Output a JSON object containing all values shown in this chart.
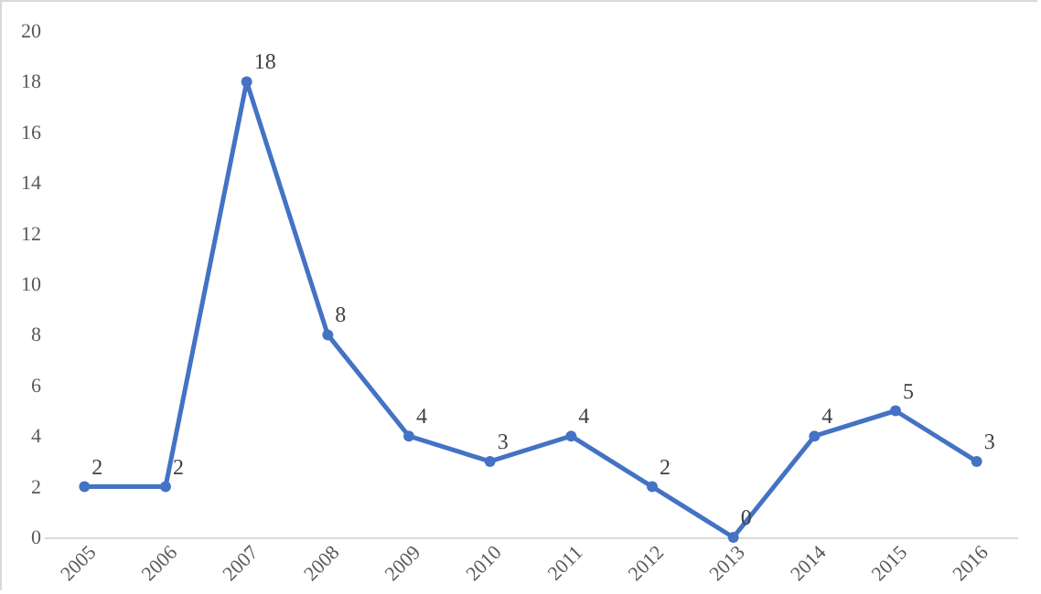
{
  "chart_data": {
    "type": "line",
    "categories": [
      "2005",
      "2006",
      "2007",
      "2008",
      "2009",
      "2010",
      "2011",
      "2012",
      "2013",
      "2014",
      "2015",
      "2016"
    ],
    "series": [
      {
        "color": "#4472c4",
        "values": [
          2,
          2,
          18,
          8,
          4,
          3,
          4,
          2,
          0,
          4,
          5,
          3
        ]
      }
    ],
    "ylim": [
      0,
      20
    ],
    "yticks": [
      0,
      2,
      4,
      6,
      8,
      10,
      12,
      14,
      16,
      18,
      20
    ],
    "grid": false,
    "marker": "circle",
    "data_labels": true
  }
}
